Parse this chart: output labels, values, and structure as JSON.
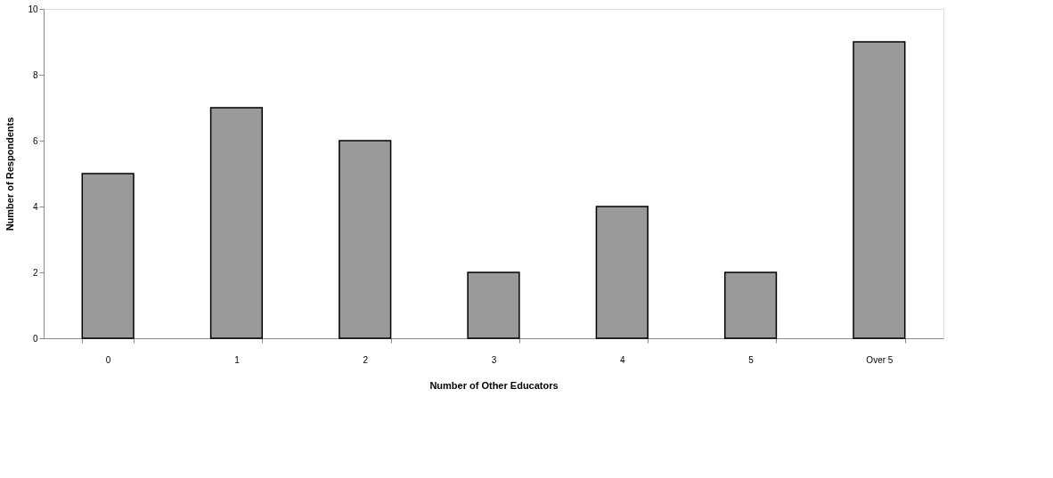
{
  "chart_data": {
    "type": "bar",
    "xlabel": "Number of Other Educators",
    "ylabel": "Number of Respondents",
    "categories": [
      "0",
      "1",
      "2",
      "3",
      "4",
      "5",
      "Over 5"
    ],
    "values": [
      5,
      7,
      6,
      2,
      4,
      2,
      9
    ],
    "color": "#9a9a9a",
    "ylim": [
      0,
      10
    ],
    "yticks": [
      0,
      2,
      4,
      6,
      8,
      10
    ],
    "grid": false
  }
}
